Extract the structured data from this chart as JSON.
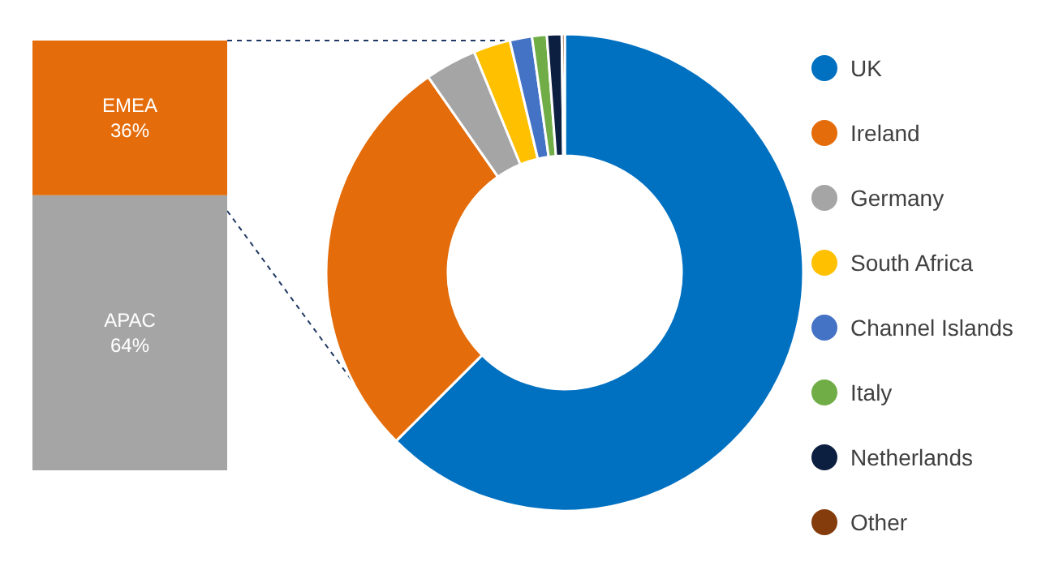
{
  "chart_data": [
    {
      "type": "bar",
      "stacked": true,
      "categories": [
        null
      ],
      "series": [
        {
          "name": "APAC",
          "color": "#a5a5a5",
          "values": [
            64
          ],
          "value_labels": [
            "64%"
          ]
        },
        {
          "name": "EMEA",
          "color": "#e46c0a",
          "values": [
            36
          ],
          "value_labels": [
            "36%"
          ]
        }
      ]
    },
    {
      "type": "donut",
      "categories": [
        "UK",
        "Ireland",
        "Germany",
        "South Africa",
        "Channel Islands",
        "Italy",
        "Netherlands",
        "Other"
      ],
      "values": [
        62.5,
        27.8,
        3.5,
        2.5,
        1.5,
        1,
        1,
        0.2
      ],
      "colors": [
        "#0070c0",
        "#e46c0a",
        "#a5a5a5",
        "#ffc000",
        "#4472c4",
        "#70ad47",
        "#0d1f40",
        "#843c0c"
      ],
      "legend": "right"
    }
  ]
}
